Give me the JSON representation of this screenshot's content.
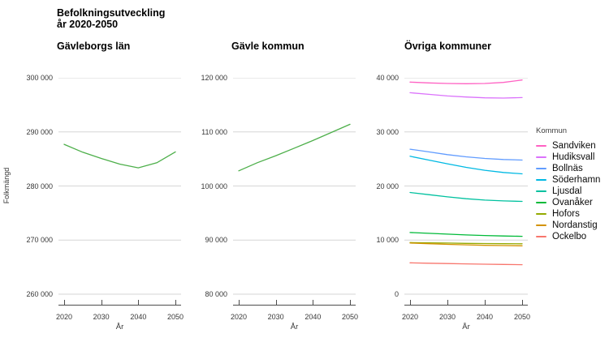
{
  "chart_data": {
    "type": "line",
    "title": "Befolkningsutveckling år 2020-2050",
    "title_lines": [
      "Befolkningsutveckling",
      "år 2020-2050"
    ],
    "xlabel": "År",
    "ylabel": "Folkmängd",
    "x": [
      2020,
      2025,
      2030,
      2035,
      2040,
      2045,
      2050
    ],
    "x_ticks": [
      2020,
      2030,
      2040,
      2050
    ],
    "xlim": [
      2020,
      2050
    ],
    "grid": "horizontal-only",
    "legend_position": "right",
    "styles": {
      "grid_color": "#d6d6d6",
      "axis_color": "#4d4d4d",
      "tick_text_color": "#383838",
      "single_series_color": "#4daf4a"
    },
    "panels": [
      {
        "title": "Gävleborgs län",
        "ylim": [
          260000,
          300000
        ],
        "yticks": [
          {
            "v": 300000,
            "label": "300 000"
          },
          {
            "v": 290000,
            "label": "290 000"
          },
          {
            "v": 280000,
            "label": "280 000"
          },
          {
            "v": 270000,
            "label": "270 000"
          },
          {
            "v": 260000,
            "label": "260 000"
          }
        ],
        "series": [
          {
            "name": "Gävleborgs län",
            "color": "#4daf4a",
            "values": [
              287700,
              286250,
              285100,
              284050,
              283350,
              284300,
              286300
            ]
          }
        ]
      },
      {
        "title": "Gävle kommun",
        "ylim": [
          80000,
          120000
        ],
        "yticks": [
          {
            "v": 120000,
            "label": "120 000"
          },
          {
            "v": 110000,
            "label": "110 000"
          },
          {
            "v": 100000,
            "label": "100 000"
          },
          {
            "v": 90000,
            "label": "90 000"
          },
          {
            "v": 80000,
            "label": "80 000"
          }
        ],
        "series": [
          {
            "name": "Gävle kommun",
            "color": "#4daf4a",
            "values": [
              102800,
              104300,
              105600,
              107000,
              108400,
              109900,
              111400
            ]
          }
        ]
      },
      {
        "title": "Övriga kommuner",
        "ylim": [
          0,
          40000
        ],
        "yticks": [
          {
            "v": 40000,
            "label": "40 000"
          },
          {
            "v": 30000,
            "label": "30 000"
          },
          {
            "v": 20000,
            "label": "20 000"
          },
          {
            "v": 10000,
            "label": "10 000"
          },
          {
            "v": 0,
            "label": "0"
          }
        ],
        "series": [
          {
            "name": "Sandviken",
            "color": "#FF61C3",
            "values": [
              39200,
              39050,
              38950,
              38900,
              38950,
              39150,
              39600
            ]
          },
          {
            "name": "Hudiksvall",
            "color": "#DB72FB",
            "values": [
              37250,
              36950,
              36650,
              36450,
              36300,
              36250,
              36350
            ]
          },
          {
            "name": "Bollnäs",
            "color": "#619CFF",
            "values": [
              26800,
              26300,
              25800,
              25400,
              25100,
              24900,
              24800
            ]
          },
          {
            "name": "Söderhamn",
            "color": "#00B9E3",
            "values": [
              25500,
              24800,
              24100,
              23450,
              22900,
              22500,
              22250
            ]
          },
          {
            "name": "Ljusdal",
            "color": "#00C19F",
            "values": [
              18800,
              18400,
              18000,
              17650,
              17400,
              17250,
              17150
            ]
          },
          {
            "name": "Ovanåker",
            "color": "#00BA38",
            "values": [
              11400,
              11250,
              11100,
              10950,
              10850,
              10750,
              10700
            ]
          },
          {
            "name": "Hofors",
            "color": "#93AA00",
            "values": [
              9550,
              9500,
              9450,
              9400,
              9370,
              9340,
              9320
            ]
          },
          {
            "name": "Nordanstig",
            "color": "#D39200",
            "values": [
              9450,
              9330,
              9220,
              9120,
              9040,
              8990,
              8950
            ]
          },
          {
            "name": "Ockelbo",
            "color": "#F8766D",
            "values": [
              5800,
              5720,
              5660,
              5600,
              5550,
              5500,
              5450
            ]
          }
        ]
      }
    ],
    "legend": {
      "title": "Kommun"
    }
  }
}
